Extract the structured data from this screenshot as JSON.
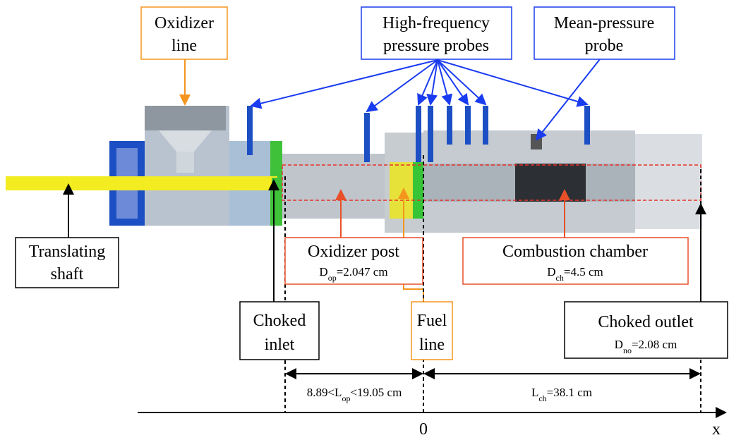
{
  "labels": {
    "oxidizer_line": {
      "lines": [
        "Oxidizer",
        "line"
      ]
    },
    "hf_probes": {
      "lines": [
        "High-frequency",
        "pressure probes"
      ]
    },
    "mean_probe": {
      "lines": [
        "Mean-pressure",
        "probe"
      ]
    },
    "translating_shaft": {
      "lines": [
        "Translating",
        "shaft"
      ]
    },
    "oxidizer_post": {
      "lines": [
        "Oxidizer post"
      ],
      "formula": [
        "D",
        "op",
        "=2.047 cm"
      ]
    },
    "combustion_chamber": {
      "lines": [
        "Combustion chamber"
      ],
      "formula": [
        "D",
        "ch",
        "=4.5 cm"
      ]
    },
    "choked_inlet": {
      "lines": [
        "Choked",
        "inlet"
      ]
    },
    "fuel_line": {
      "lines": [
        "Fuel",
        "line"
      ]
    },
    "choked_outlet": {
      "lines": [
        "Choked outlet"
      ],
      "formula": [
        "D",
        "no",
        "=2.08 cm"
      ]
    }
  },
  "dimensions": {
    "oxidizer_post_length": [
      "8.89<L",
      "op",
      "<19.05 cm"
    ],
    "chamber_length": [
      "L",
      "ch",
      "=38.1 cm"
    ]
  },
  "axis": {
    "origin": "0",
    "label": "x"
  }
}
